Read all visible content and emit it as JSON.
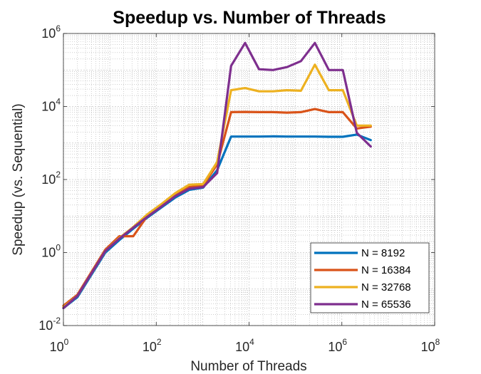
{
  "chart_data": {
    "type": "line",
    "title": "Speedup vs. Number of Threads",
    "xlabel": "Number of Threads",
    "ylabel": "Speedup (vs. Sequential)",
    "xscale": "log",
    "yscale": "log",
    "xlim": [
      1,
      100000000
    ],
    "ylim": [
      0.01,
      1000000
    ],
    "grid": true,
    "minor_grid": true,
    "legend_position": "bottom-right",
    "xticks": [
      {
        "base": "10",
        "exp": "0",
        "value": 1
      },
      {
        "base": "10",
        "exp": "2",
        "value": 100
      },
      {
        "base": "10",
        "exp": "4",
        "value": 10000
      },
      {
        "base": "10",
        "exp": "6",
        "value": 1000000
      },
      {
        "base": "10",
        "exp": "8",
        "value": 100000000
      }
    ],
    "yticks": [
      {
        "base": "10",
        "exp": "-2",
        "value": 0.01
      },
      {
        "base": "10",
        "exp": "0",
        "value": 1
      },
      {
        "base": "10",
        "exp": "2",
        "value": 100
      },
      {
        "base": "10",
        "exp": "4",
        "value": 10000
      },
      {
        "base": "10",
        "exp": "6",
        "value": 1000000
      }
    ],
    "series": [
      {
        "name": "N = 8192",
        "color": "#0072BD",
        "x": [
          1,
          2,
          8,
          16,
          32,
          64,
          128,
          256,
          512,
          1024,
          2048,
          4096,
          8192,
          16384,
          32768,
          65536,
          131072,
          262144,
          524288,
          1048576,
          2097152,
          4194304
        ],
        "y": [
          0.03,
          0.06,
          1.0,
          2.2,
          4.5,
          9,
          17,
          32,
          52,
          60,
          180,
          1500,
          1500,
          1500,
          1520,
          1500,
          1500,
          1500,
          1480,
          1480,
          1700,
          1200
        ]
      },
      {
        "name": "N = 16384",
        "color": "#D95319",
        "x": [
          1,
          2,
          8,
          16,
          32,
          64,
          128,
          256,
          512,
          1024,
          2048,
          4096,
          8192,
          16384,
          32768,
          65536,
          131072,
          262144,
          524288,
          1048576,
          2097152,
          4194304
        ],
        "y": [
          0.035,
          0.07,
          1.2,
          2.8,
          2.8,
          10,
          20,
          38,
          62,
          68,
          260,
          7000,
          7100,
          7000,
          7000,
          6800,
          7000,
          8500,
          7000,
          7000,
          2500,
          2800
        ]
      },
      {
        "name": "N = 32768",
        "color": "#EDB120",
        "x": [
          1,
          2,
          8,
          16,
          32,
          64,
          128,
          256,
          512,
          1024,
          2048,
          4096,
          8192,
          16384,
          32768,
          65536,
          131072,
          262144,
          524288,
          1048576,
          2097152,
          4194304
        ],
        "y": [
          0.032,
          0.065,
          1.1,
          2.5,
          5,
          11,
          21,
          42,
          72,
          75,
          300,
          28000,
          32000,
          26000,
          26000,
          28000,
          27000,
          140000,
          28000,
          28000,
          3000,
          3000
        ]
      },
      {
        "name": "N = 65536",
        "color": "#7E2F8E",
        "x": [
          1,
          2,
          8,
          16,
          32,
          64,
          128,
          256,
          512,
          1024,
          2048,
          4096,
          8192,
          16384,
          32768,
          65536,
          131072,
          262144,
          524288,
          1048576,
          2097152,
          4194304
        ],
        "y": [
          0.03,
          0.065,
          1.1,
          2.4,
          4.8,
          9.5,
          18,
          35,
          56,
          62,
          150,
          130000,
          550000,
          105000,
          100000,
          120000,
          175000,
          550000,
          100000,
          100000,
          1900,
          800
        ]
      }
    ]
  }
}
